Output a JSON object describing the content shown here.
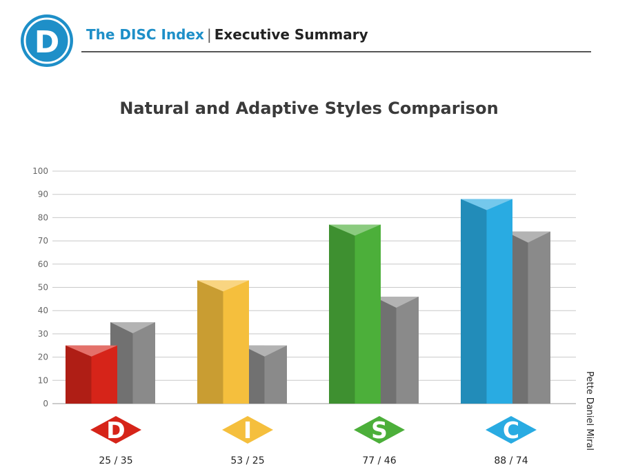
{
  "header": {
    "logo_letter": "D",
    "brand": "The DISC Index",
    "separator": "|",
    "section": "Executive Summary"
  },
  "author": "Pette Daniel Miral",
  "colors": {
    "brand_blue": "#1e8fc8",
    "adaptive_gray": "#8a8a8a"
  },
  "chart_data": {
    "type": "bar",
    "title": "Natural and Adaptive Styles Comparison",
    "categories": [
      "D",
      "I",
      "S",
      "C"
    ],
    "series": [
      {
        "values": [
          25,
          53,
          77,
          88
        ]
      },
      {
        "values": [
          35,
          25,
          46,
          74
        ]
      }
    ],
    "category_labels": [
      "25 / 35",
      "53 / 25",
      "77 / 46",
      "88 / 74"
    ],
    "category_colors": [
      "#d62419",
      "#f5bf3d",
      "#4caf3a",
      "#29abe2"
    ],
    "ylim": [
      0,
      100
    ],
    "yticks": [
      0,
      10,
      20,
      30,
      40,
      50,
      60,
      70,
      80,
      90,
      100
    ],
    "grid": true,
    "style": "3d-columns"
  }
}
